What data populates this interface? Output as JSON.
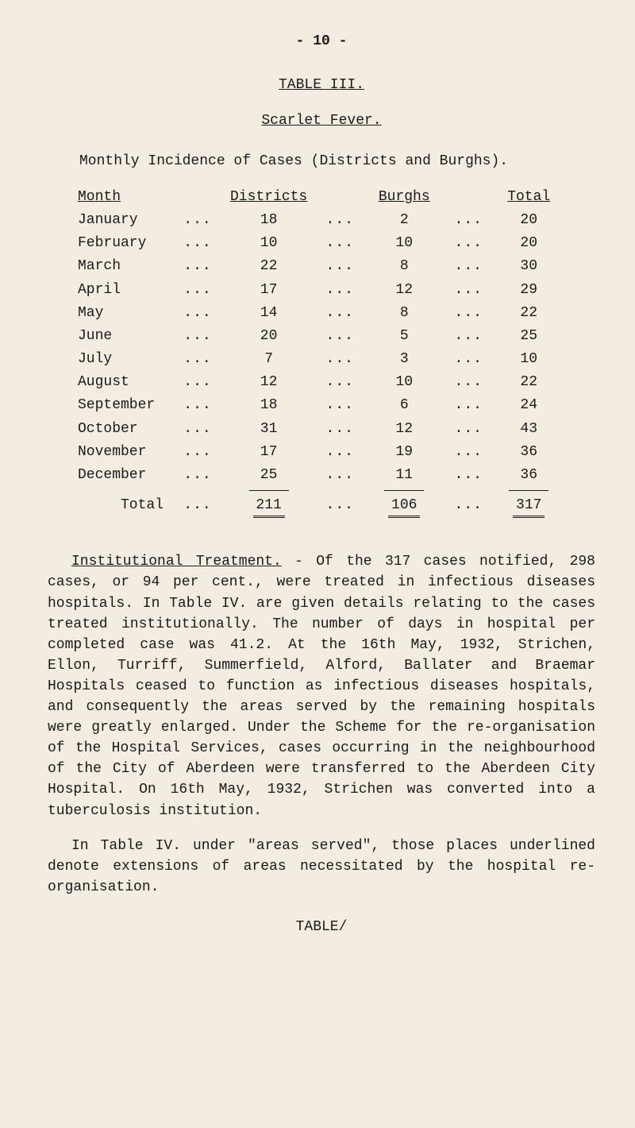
{
  "page_number": "- 10 -",
  "table_title": "TABLE III.",
  "subtitle": "Scarlet Fever.",
  "caption": "Monthly Incidence of Cases (Districts and Burghs).",
  "headers": {
    "month": "Month",
    "districts": "Districts",
    "burghs": "Burghs",
    "total": "Total"
  },
  "dots": "...",
  "rows": [
    {
      "month": "January",
      "districts": "18",
      "burghs": "2",
      "total": "20"
    },
    {
      "month": "February",
      "districts": "10",
      "burghs": "10",
      "total": "20"
    },
    {
      "month": "March",
      "districts": "22",
      "burghs": "8",
      "total": "30"
    },
    {
      "month": "April",
      "districts": "17",
      "burghs": "12",
      "total": "29"
    },
    {
      "month": "May",
      "districts": "14",
      "burghs": "8",
      "total": "22"
    },
    {
      "month": "June",
      "districts": "20",
      "burghs": "5",
      "total": "25"
    },
    {
      "month": "July",
      "districts": "7",
      "burghs": "3",
      "total": "10"
    },
    {
      "month": "August",
      "districts": "12",
      "burghs": "10",
      "total": "22"
    },
    {
      "month": "September",
      "districts": "18",
      "burghs": "6",
      "total": "24"
    },
    {
      "month": "October",
      "districts": "31",
      "burghs": "12",
      "total": "43"
    },
    {
      "month": "November",
      "districts": "17",
      "burghs": "19",
      "total": "36"
    },
    {
      "month": "December",
      "districts": "25",
      "burghs": "11",
      "total": "36"
    }
  ],
  "totals": {
    "label": "Total",
    "districts": "211",
    "burghs": "106",
    "total": "317"
  },
  "para1_label": "Institutional Treatment.",
  "para1": " -   Of the 317 cases notified, 298 cases, or 94 per cent., were treated in infectious diseases hospitals. In Table IV. are given details relating to the cases treated institutionally.  The number of days in hospital per completed case was 41.2.  At the 16th May, 1932, Strichen, Ellon, Turriff, Summerfield, Alford, Ballater and Braemar Hospitals ceased to function as infectious diseases hospitals, and consequently the areas served by the remaining hospitals were greatly enlarged.  Under the Scheme for the re-organisation of the Hospital Services, cases occurring in the neighbourhood of the City of Aberdeen were transferred to the Aberdeen City Hospital. On 16th May, 1932, Strichen was converted into a tuberculosis institution.",
  "para2": "In Table IV. under \"areas served\", those places underlined denote extensions of areas necessitated by the hospital re-organisation.",
  "continuation": "TABLE/"
}
